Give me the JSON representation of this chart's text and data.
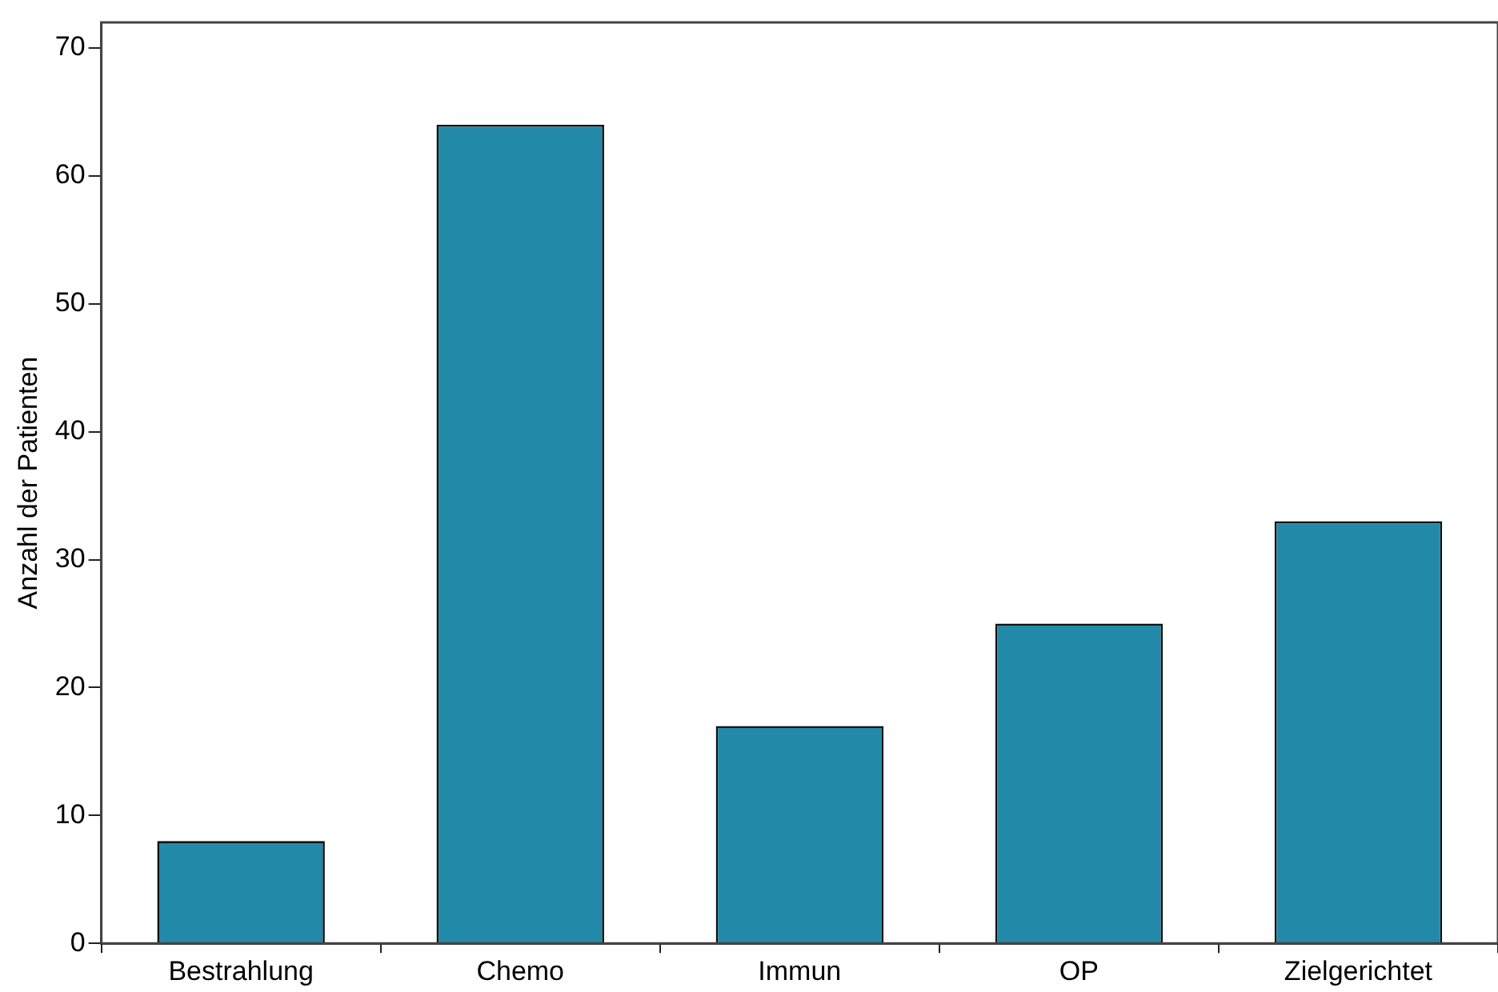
{
  "chart_data": {
    "type": "bar",
    "ylabel": "Anzahl der Patienten",
    "categories": [
      "Bestrahlung",
      "Chemo",
      "Immun",
      "OP",
      "Zielgerichtet"
    ],
    "values": [
      8,
      64,
      17,
      25,
      33
    ],
    "color": "#2389a8",
    "ylim": [
      0,
      72
    ],
    "yticks": [
      0,
      10,
      20,
      30,
      40,
      50,
      60,
      70
    ],
    "grid": false,
    "legend": false
  }
}
